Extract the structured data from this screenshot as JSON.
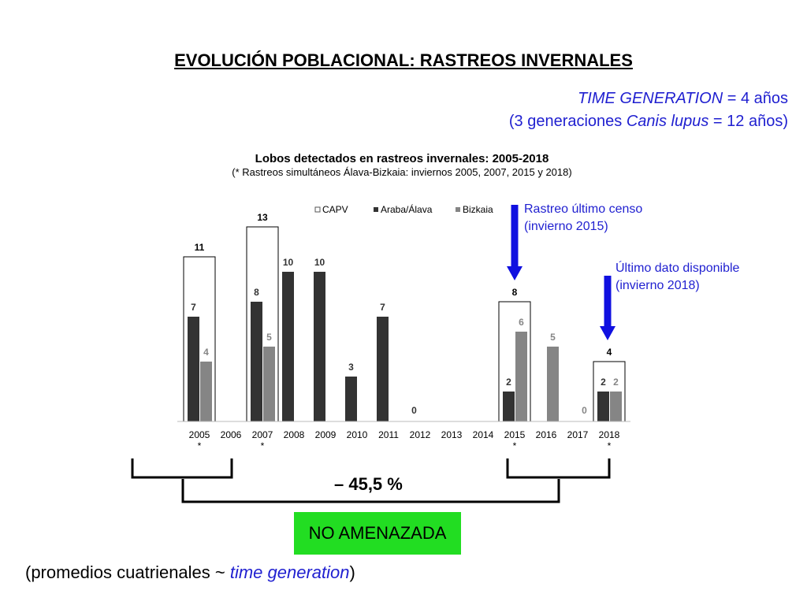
{
  "slide": {
    "title": "EVOLUCIÓN POBLACIONAL: RASTREOS INVERNALES",
    "time_generation": {
      "line1_italic": "TIME GENERATION",
      "line1_rest": " = 4 años",
      "line2_pre": "(3 generaciones ",
      "line2_italic": "Canis lupus",
      "line2_post": " = 12 años)"
    },
    "annotations": {
      "census_line1": "Rastreo último censo",
      "census_line2": "(invierno 2015)",
      "last_line1": "Último dato disponible",
      "last_line2": "(invierno 2018)"
    },
    "change_label": "– 45,5 %",
    "status": "NO AMENAZADA",
    "note_pre": "(promedios cuatrienales ~ ",
    "note_italic": "time generation",
    "note_post": ")",
    "colors": {
      "annotation_blue": "#1f1fd0",
      "arrow_blue": "#1010e0",
      "status_green": "#22dd22"
    }
  },
  "chart_data": {
    "type": "bar",
    "title": "Lobos detectados en rastreos invernales: 2005-2018",
    "subtitle": "(* Rastreos simultáneos Álava-Bizkaia: inviernos 2005, 2007, 2015 y 2018)",
    "categories": [
      "2005",
      "2006",
      "2007",
      "2008",
      "2009",
      "2010",
      "2011",
      "2012",
      "2013",
      "2014",
      "2015",
      "2016",
      "2017",
      "2018"
    ],
    "asterisk_categories": [
      "2005",
      "2007",
      "2015",
      "2018"
    ],
    "series": [
      {
        "name": "CAPV",
        "color": "#ffffff",
        "values": [
          11,
          null,
          13,
          null,
          null,
          null,
          null,
          null,
          null,
          null,
          8,
          null,
          null,
          4
        ]
      },
      {
        "name": "Araba/Álava",
        "color": "#333333",
        "values": [
          7,
          null,
          8,
          10,
          10,
          3,
          7,
          0,
          null,
          null,
          2,
          null,
          null,
          2
        ]
      },
      {
        "name": "Bizkaia",
        "color": "#858585",
        "values": [
          4,
          null,
          5,
          null,
          null,
          null,
          null,
          null,
          null,
          null,
          6,
          5,
          0,
          2
        ]
      }
    ],
    "ylim": [
      0,
      14
    ],
    "legend_position": "top",
    "grid": false
  }
}
